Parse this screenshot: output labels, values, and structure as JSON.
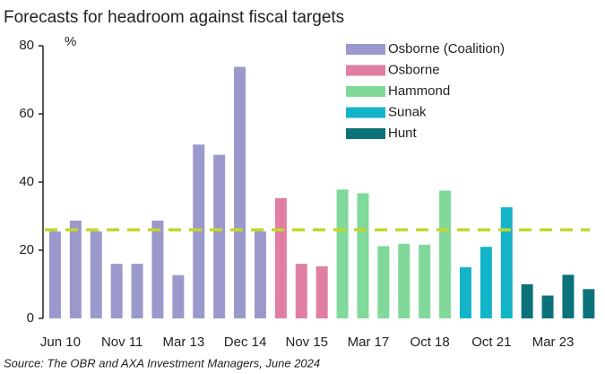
{
  "chart_data": {
    "type": "bar",
    "title": "Forecasts for headroom against fiscal targets",
    "ylabel": "%",
    "source": "Source:  The OBR and AXA Investment Managers, June 2024",
    "categories": [
      "Jun 10",
      null,
      null,
      "Nov 11",
      null,
      null,
      "Mar 13",
      null,
      null,
      "Dec 14",
      null,
      null,
      "Nov 15",
      null,
      null,
      "Mar 17",
      null,
      null,
      "Oct 18",
      null,
      null,
      "Oct 21",
      null,
      null,
      "Mar 23",
      null,
      null
    ],
    "series": [
      {
        "name": "Osborne (Coalition)",
        "color": "#9b99cc",
        "values": [
          25.5,
          28.7,
          25.5,
          16,
          16,
          28.7,
          12.7,
          51,
          48,
          73.8,
          25.5,
          null,
          null,
          null,
          null,
          null,
          null,
          null,
          null,
          null,
          null,
          null,
          null,
          null,
          null,
          null,
          null
        ]
      },
      {
        "name": "Osborne",
        "color": "#e07fa3",
        "values": [
          null,
          null,
          null,
          null,
          null,
          null,
          null,
          null,
          null,
          null,
          null,
          35.3,
          16,
          15.3,
          null,
          null,
          null,
          null,
          null,
          null,
          null,
          null,
          null,
          null,
          null,
          null,
          null
        ]
      },
      {
        "name": "Hammond",
        "color": "#80d99b",
        "values": [
          null,
          null,
          null,
          null,
          null,
          null,
          null,
          null,
          null,
          null,
          null,
          null,
          null,
          null,
          37.8,
          36.7,
          21.2,
          21.9,
          21.6,
          37.5,
          null,
          null,
          null,
          null,
          null,
          null,
          null
        ]
      },
      {
        "name": "Sunak",
        "color": "#14b4c8",
        "values": [
          null,
          null,
          null,
          null,
          null,
          null,
          null,
          null,
          null,
          null,
          null,
          null,
          null,
          null,
          null,
          null,
          null,
          null,
          null,
          null,
          15,
          21,
          32.6,
          null,
          null,
          null,
          null
        ]
      },
      {
        "name": "Hunt",
        "color": "#0b727a",
        "values": [
          null,
          null,
          null,
          null,
          null,
          null,
          null,
          null,
          null,
          null,
          null,
          null,
          null,
          null,
          null,
          null,
          null,
          null,
          null,
          null,
          null,
          null,
          null,
          10,
          6.7,
          12.8,
          8.6
        ]
      }
    ],
    "reference_line": {
      "value": 26,
      "color": "#c5d62c"
    },
    "ylim": [
      0,
      80
    ],
    "yticks": [
      0,
      20,
      40,
      60,
      80
    ],
    "legend": "top-right"
  }
}
